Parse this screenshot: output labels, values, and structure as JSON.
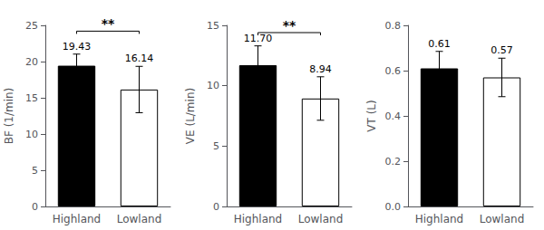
{
  "chart_data": [
    {
      "type": "bar",
      "ylabel": "BF (1/min)",
      "categories": [
        "Highland",
        "Lowland"
      ],
      "values": [
        19.43,
        16.14
      ],
      "errors": [
        1.6,
        3.2
      ],
      "value_labels": [
        "19.43",
        "16.14"
      ],
      "data_labels": true,
      "colors": [
        "#000000",
        "#ffffff"
      ],
      "ylim": [
        0,
        25
      ],
      "yticks": [
        0,
        5,
        10,
        15,
        20,
        25
      ],
      "grid": false,
      "annotations": [
        {
          "text": "**",
          "y": 24.2
        }
      ]
    },
    {
      "type": "bar",
      "ylabel": "VE (L/min)",
      "categories": [
        "Highland",
        "Lowland"
      ],
      "values": [
        11.7,
        8.94
      ],
      "errors": [
        1.6,
        1.8
      ],
      "value_labels": [
        "11.70",
        "8.94"
      ],
      "data_labels": true,
      "colors": [
        "#000000",
        "#ffffff"
      ],
      "ylim": [
        0,
        15
      ],
      "yticks": [
        0,
        5,
        10,
        15
      ],
      "grid": false,
      "annotations": [
        {
          "text": "**",
          "y": 14.4
        }
      ]
    },
    {
      "type": "bar",
      "ylabel": "VT (L)",
      "categories": [
        "Highland",
        "Lowland"
      ],
      "values": [
        0.61,
        0.57
      ],
      "errors": [
        0.075,
        0.085
      ],
      "value_labels": [
        "0.61",
        "0.57"
      ],
      "data_labels": true,
      "colors": [
        "#000000",
        "#ffffff"
      ],
      "ylim": [
        0.0,
        0.8
      ],
      "yticks": [
        {
          "value": 0.0,
          "label": "0.0"
        },
        0.2,
        0.4,
        0.6,
        0.8
      ],
      "grid": false
    }
  ]
}
